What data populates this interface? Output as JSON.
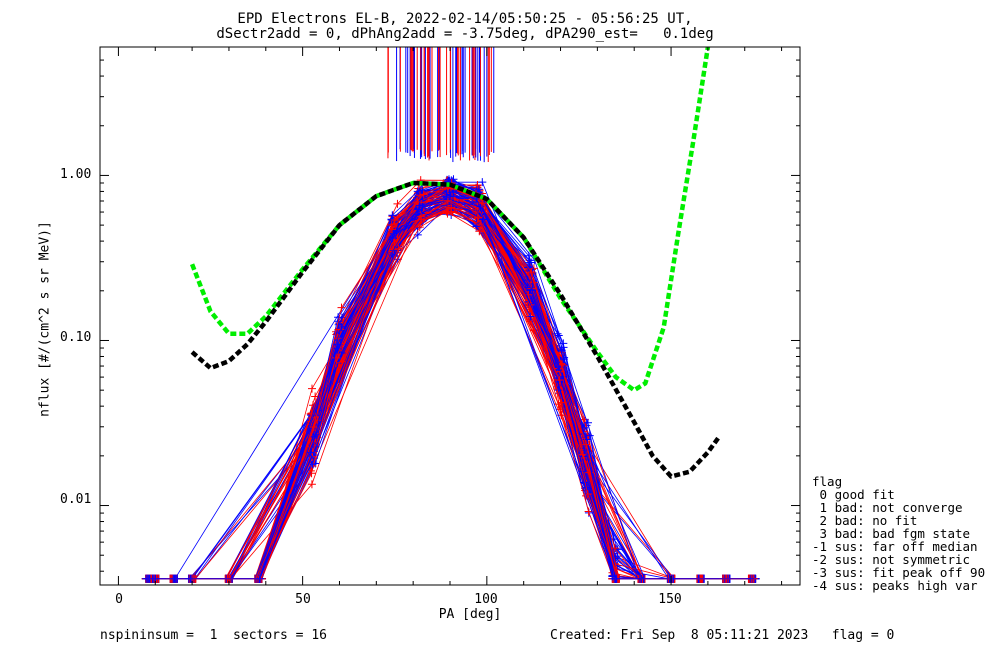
{
  "title_line1": "EPD Electrons EL-B, 2022-02-14/05:50:25 - 05:56:25 UT,",
  "title_line2": "dSectr2add = 0, dPhAng2add = -3.75deg, dPA290_est=   0.1deg",
  "footer_left": "nspininsum =  1  sectors = 16",
  "footer_right": "Created: Fri Sep  8 05:11:21 2023   flag = 0",
  "legend": {
    "title": "flag",
    "items": [
      " 0 good fit",
      " 1 bad: not converge",
      " 2 bad: no fit",
      " 3 bad: bad fgm state",
      "-1 sus: far off median",
      "-2 sus: not symmetric",
      "-3 sus: fit peak off 90",
      "-4 sus: peaks high var"
    ]
  },
  "chart_data": {
    "type": "line",
    "xlabel": "PA [deg]",
    "ylabel": "nflux [#/(cm^2 s sr MeV)]",
    "xlim": [
      -5,
      185
    ],
    "ylim": [
      0.0033,
      6.0
    ],
    "yscale": "log",
    "xticks": [
      0,
      50,
      100,
      150
    ],
    "xtick_labels": [
      "0",
      "50",
      "100",
      "150"
    ],
    "yticks": [
      0.01,
      0.1,
      1.0
    ],
    "ytick_labels": [
      "0.01",
      "0.10",
      "1.00"
    ],
    "colors": {
      "red": "#ff0000",
      "blue": "#0000ff",
      "green": "#00ee00",
      "black": "#000000"
    },
    "pa_bins": [
      8.4,
      10,
      15,
      20,
      30,
      38,
      53,
      60,
      75,
      82,
      90,
      98,
      112,
      120,
      127,
      135,
      142,
      150,
      158,
      165,
      172
    ],
    "spike_region": {
      "x_range": [
        73,
        102
      ],
      "y_range": [
        1.2,
        6.0
      ]
    },
    "series": [
      {
        "color": "red",
        "curves": 60,
        "approximate": true
      },
      {
        "color": "blue",
        "curves": 60,
        "approximate": true
      },
      {
        "color": "green",
        "style": "dashed",
        "x": [
          20,
          25,
          30,
          35,
          40,
          50,
          60,
          70,
          80,
          90,
          100,
          110,
          120,
          130,
          135,
          140,
          143,
          148,
          152,
          156,
          160
        ],
        "y": [
          0.29,
          0.15,
          0.11,
          0.11,
          0.14,
          0.27,
          0.5,
          0.75,
          0.9,
          0.88,
          0.72,
          0.42,
          0.18,
          0.085,
          0.06,
          0.05,
          0.055,
          0.12,
          0.45,
          1.6,
          6.0
        ]
      },
      {
        "color": "black",
        "style": "dashed",
        "x": [
          20,
          25,
          30,
          35,
          40,
          50,
          60,
          70,
          80,
          90,
          100,
          110,
          120,
          130,
          140,
          145,
          150,
          155,
          160,
          163
        ],
        "y": [
          0.085,
          0.068,
          0.075,
          0.095,
          0.13,
          0.26,
          0.5,
          0.75,
          0.9,
          0.88,
          0.72,
          0.42,
          0.19,
          0.08,
          0.032,
          0.02,
          0.015,
          0.016,
          0.021,
          0.026
        ]
      }
    ]
  }
}
